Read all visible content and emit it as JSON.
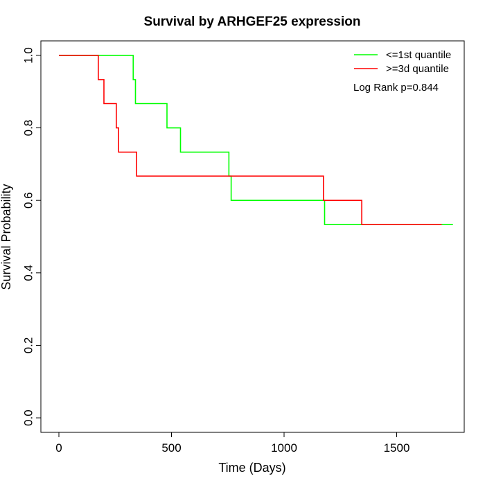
{
  "chart_data": {
    "type": "line",
    "step": true,
    "title": "Survival by ARHGEF25 expression",
    "xlabel": "Time (Days)",
    "ylabel": "Survival Probability",
    "xlim": [
      -80,
      1800
    ],
    "ylim": [
      -0.04,
      1.04
    ],
    "xticks": [
      0,
      500,
      1000,
      1500
    ],
    "xtick_labels": [
      "0",
      "500",
      "1000",
      "1500"
    ],
    "yticks": [
      0.0,
      0.2,
      0.4,
      0.6,
      0.8,
      1.0
    ],
    "ytick_labels": [
      "0.0",
      "0.2",
      "0.4",
      "0.6",
      "0.8",
      "1.0"
    ],
    "grid": false,
    "legend_position": "top-right",
    "annotation": "Log Rank p=0.844",
    "series": [
      {
        "name": "<=1st quantile",
        "color": "#00ff00",
        "x": [
          0,
          330,
          340,
          480,
          540,
          755,
          765,
          1180,
          1750
        ],
        "y": [
          1.0,
          0.933,
          0.867,
          0.8,
          0.733,
          0.667,
          0.6,
          0.533,
          0.533
        ]
      },
      {
        "name": ">=3d quantile",
        "color": "#ff0000",
        "x": [
          0,
          175,
          200,
          255,
          265,
          345,
          1175,
          1345,
          1700
        ],
        "y": [
          1.0,
          0.933,
          0.867,
          0.8,
          0.733,
          0.667,
          0.6,
          0.533,
          0.533
        ]
      }
    ]
  }
}
